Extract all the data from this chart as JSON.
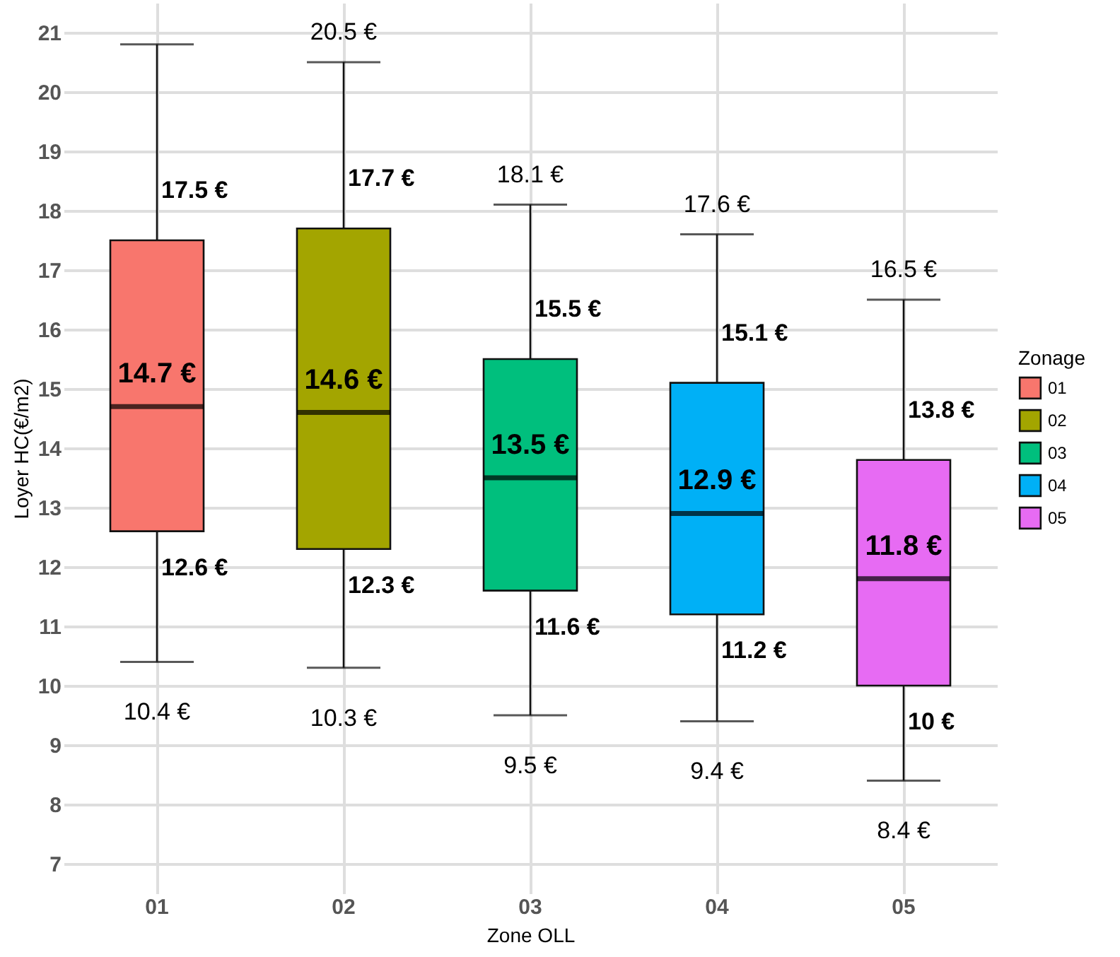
{
  "chart_data": {
    "type": "box",
    "xlabel": "Zone OLL",
    "ylabel": "Loyer HC(€/m2)",
    "legend_title": "Zonage",
    "categories": [
      "01",
      "02",
      "03",
      "04",
      "05"
    ],
    "series": [
      {
        "name": "01",
        "color": "#f8766d",
        "boxes": [
          {
            "low": 10.4,
            "q1": 12.6,
            "median": 14.7,
            "q3": 17.5,
            "high": 20.8
          },
          null,
          null,
          null,
          null
        ]
      },
      {
        "name": "02",
        "color": "#a3a500",
        "boxes": [
          null,
          {
            "low": 10.3,
            "q1": 12.3,
            "median": 14.6,
            "q3": 17.7,
            "high": 20.5
          },
          null,
          null,
          null
        ]
      },
      {
        "name": "03",
        "color": "#00bf7d",
        "boxes": [
          null,
          null,
          {
            "low": 9.5,
            "q1": 11.6,
            "median": 13.5,
            "q3": 15.5,
            "high": 18.1
          },
          null,
          null
        ]
      },
      {
        "name": "04",
        "color": "#00b0f6",
        "boxes": [
          null,
          null,
          null,
          {
            "low": 9.4,
            "q1": 11.2,
            "median": 12.9,
            "q3": 15.1,
            "high": 17.6
          },
          null
        ]
      },
      {
        "name": "05",
        "color": "#e76bf3",
        "boxes": [
          null,
          null,
          null,
          null,
          {
            "low": 8.4,
            "q1": 10,
            "median": 11.8,
            "q3": 13.8,
            "high": 16.5
          }
        ]
      }
    ],
    "ylim": [
      6.5,
      21.5
    ],
    "yticks": [
      7,
      8,
      9,
      10,
      11,
      12,
      13,
      14,
      15,
      16,
      17,
      18,
      19,
      20,
      21
    ],
    "grid": true,
    "legend": "right",
    "annotations": [
      {
        "text": "10.4 €",
        "x": "01",
        "y": 10.4
      },
      {
        "text": "12.6 €",
        "x": "01",
        "y": 12.6
      },
      {
        "text": "14.7 €",
        "x": "01",
        "y": 14.7
      },
      {
        "text": "17.5 €",
        "x": "01",
        "y": 17.5
      },
      {
        "text": "10.3 €",
        "x": "02",
        "y": 10.3
      },
      {
        "text": "12.3 €",
        "x": "02",
        "y": 12.3
      },
      {
        "text": "14.6 €",
        "x": "02",
        "y": 14.6
      },
      {
        "text": "17.7 €",
        "x": "02",
        "y": 17.7
      },
      {
        "text": "20.5 €",
        "x": "02",
        "y": 20.5
      },
      {
        "text": "9.5 €",
        "x": "03",
        "y": 9.5
      },
      {
        "text": "11.6 €",
        "x": "03",
        "y": 11.6
      },
      {
        "text": "13.5 €",
        "x": "03",
        "y": 13.5
      },
      {
        "text": "15.5 €",
        "x": "03",
        "y": 15.5
      },
      {
        "text": "18.1 €",
        "x": "03",
        "y": 18.1
      },
      {
        "text": "9.4 €",
        "x": "04",
        "y": 9.4
      },
      {
        "text": "11.2 €",
        "x": "04",
        "y": 11.2
      },
      {
        "text": "12.9 €",
        "x": "04",
        "y": 12.9
      },
      {
        "text": "15.1 €",
        "x": "04",
        "y": 15.1
      },
      {
        "text": "17.6 €",
        "x": "04",
        "y": 17.6
      },
      {
        "text": "8.4 €",
        "x": "05",
        "y": 8.4
      },
      {
        "text": "10 €",
        "x": "05",
        "y": 10
      },
      {
        "text": "11.8 €",
        "x": "05",
        "y": 11.8
      },
      {
        "text": "13.8 €",
        "x": "05",
        "y": 13.8
      },
      {
        "text": "16.5 €",
        "x": "05",
        "y": 16.5
      }
    ]
  }
}
